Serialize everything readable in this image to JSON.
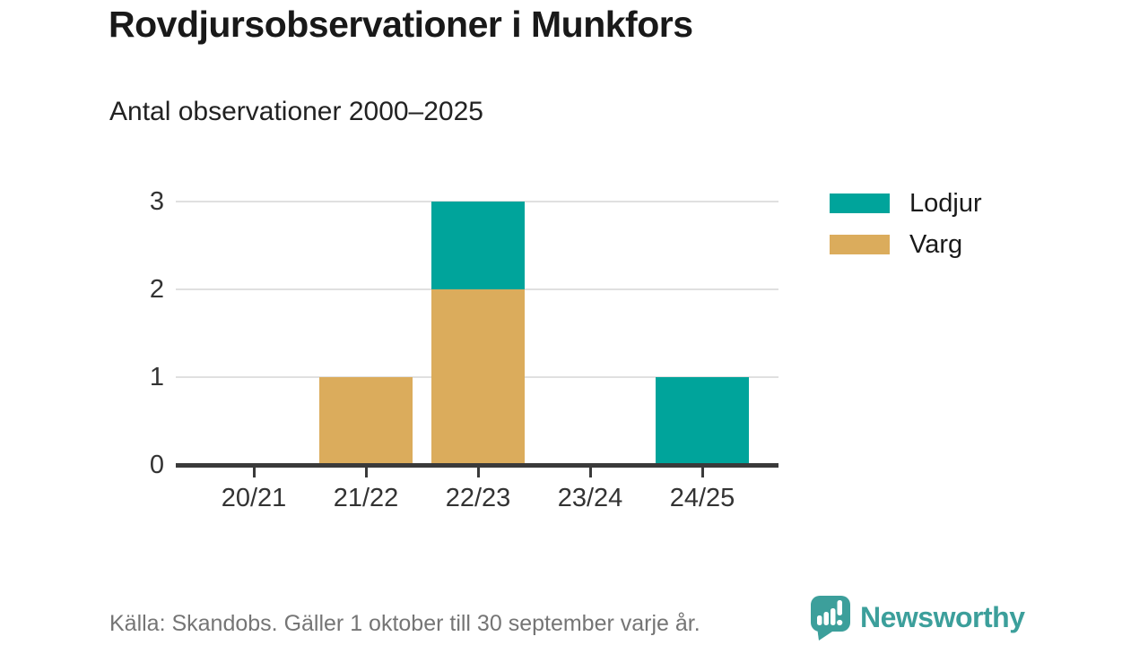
{
  "header": {
    "title": "Rovdjursobservationer i Munkfors",
    "subtitle": "Antal observationer 2000–2025"
  },
  "chart_data": {
    "type": "bar",
    "stacked": true,
    "title": "Rovdjursobservationer i Munkfors",
    "subtitle": "Antal observationer 2000–2025",
    "xlabel": "",
    "ylabel": "",
    "categories": [
      "20/21",
      "21/22",
      "22/23",
      "23/24",
      "24/25"
    ],
    "series": [
      {
        "name": "Varg",
        "color": "#DBAC5C",
        "values": [
          0,
          1,
          2,
          0,
          0
        ]
      },
      {
        "name": "Lodjur",
        "color": "#00A49B",
        "values": [
          0,
          0,
          1,
          0,
          1
        ]
      }
    ],
    "totals": [
      0,
      1,
      3,
      0,
      1
    ],
    "ylim": [
      0,
      3
    ],
    "yticks": [
      0,
      1,
      2,
      3
    ],
    "grid": true,
    "legend_position": "right"
  },
  "legend": {
    "items": [
      {
        "label": "Lodjur",
        "color": "#00A49B"
      },
      {
        "label": "Varg",
        "color": "#DBAC5C"
      }
    ]
  },
  "footer": {
    "source": "Källa: Skandobs. Gäller 1 oktober till 30 september varje år.",
    "brand": "Newsworthy"
  },
  "colors": {
    "lodjur": "#00A49B",
    "varg": "#DBAC5C",
    "gridline": "#E0E0E0",
    "axis": "#3A3A3A",
    "axis_text": "#333333",
    "text": "#1A1A1A",
    "muted": "#757575",
    "brand": "#3C9F9B"
  }
}
